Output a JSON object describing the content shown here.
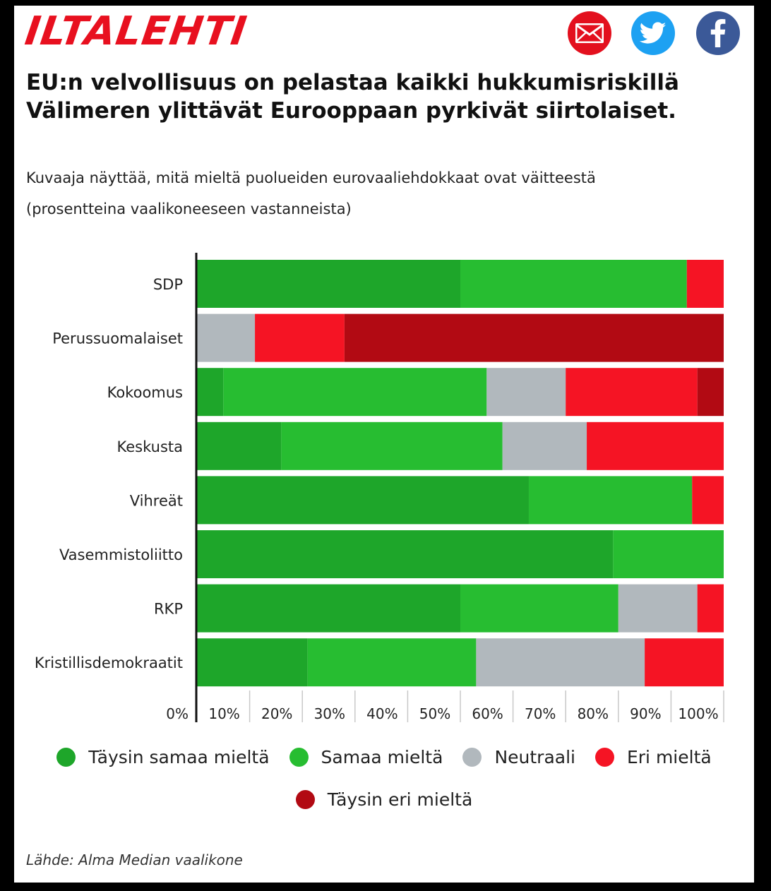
{
  "header": {
    "logo_text": "ILTALEHTI",
    "share_buttons": [
      {
        "name": "email",
        "icon": "envelope-icon",
        "color": "#e3101e"
      },
      {
        "name": "twitter",
        "icon": "twitter-bird-icon",
        "color": "#1da1f2"
      },
      {
        "name": "facebook",
        "icon": "facebook-f-icon",
        "color": "#3b5998"
      }
    ]
  },
  "headline": {
    "line1": "EU:n velvollisuus on pelastaa kaikki hukkumisriskillä",
    "line2": "Välimeren ylittävät Eurooppaan pyrkivät siirtolaiset."
  },
  "subtitle": {
    "line1": "Kuvaaja näyttää, mitä mieltä puolueiden eurovaaliehdokkaat ovat väitteestä",
    "line2": "(prosentteina vaalikoneeseen vastanneista)"
  },
  "source": "Lähde: Alma Median vaalikone",
  "chart_data": {
    "type": "bar",
    "orientation": "horizontal",
    "stacked": true,
    "categories": [
      "SDP",
      "Perussuomalaiset",
      "Kokoomus",
      "Keskusta",
      "Vihreät",
      "Vasemmistoliitto",
      "RKP",
      "Kristillisdemokraatit"
    ],
    "series": [
      {
        "name": "Täysin samaa mieltä",
        "color": "#1ea62a",
        "values": [
          50,
          0,
          5,
          16,
          63,
          79,
          50,
          21
        ]
      },
      {
        "name": "Samaa mieltä",
        "color": "#27bd31",
        "values": [
          43,
          0,
          50,
          42,
          31,
          21,
          30,
          32
        ]
      },
      {
        "name": "Neutraali",
        "color": "#b1b8bd",
        "values": [
          0,
          11,
          15,
          16,
          0,
          0,
          15,
          32
        ]
      },
      {
        "name": "Eri mieltä",
        "color": "#f51424",
        "values": [
          7,
          17,
          25,
          26,
          6,
          0,
          5,
          15
        ]
      },
      {
        "name": "Täysin eri mieltä",
        "color": "#b20a13",
        "values": [
          0,
          72,
          5,
          0,
          0,
          0,
          0,
          0
        ]
      }
    ],
    "x_tick_labels": [
      "0%",
      "10%",
      "20%",
      "30%",
      "40%",
      "50%",
      "60%",
      "70%",
      "80%",
      "90%",
      "100%"
    ],
    "xlim": [
      0,
      100
    ],
    "legend_position": "bottom",
    "grid": false
  }
}
